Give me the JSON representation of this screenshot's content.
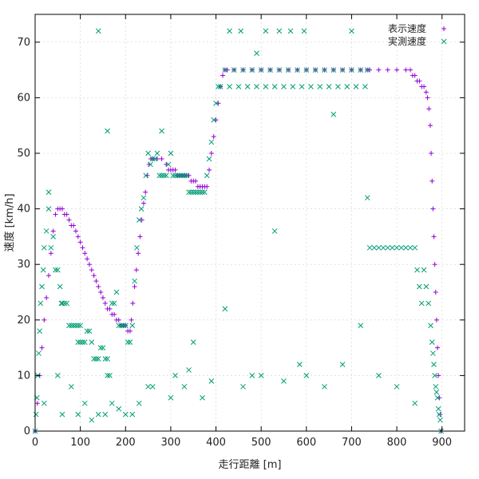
{
  "chart_data": {
    "type": "scatter",
    "title": "",
    "xlabel": "走行距離 [m]",
    "ylabel": "速度 [km/h]",
    "xlim": [
      0,
      950
    ],
    "ylim": [
      0,
      75
    ],
    "xticks": [
      0,
      100,
      200,
      300,
      400,
      500,
      600,
      700,
      800,
      900
    ],
    "yticks": [
      0,
      10,
      20,
      30,
      40,
      50,
      60,
      70
    ],
    "grid": true,
    "legend_position": "top-right",
    "series": [
      {
        "name": "表示速度",
        "marker": "plus",
        "color": "#9400d3",
        "points": [
          [
            0,
            0
          ],
          [
            5,
            5
          ],
          [
            10,
            10
          ],
          [
            15,
            15
          ],
          [
            20,
            20
          ],
          [
            25,
            24
          ],
          [
            30,
            28
          ],
          [
            35,
            32
          ],
          [
            40,
            36
          ],
          [
            45,
            39
          ],
          [
            50,
            40
          ],
          [
            55,
            40
          ],
          [
            60,
            40
          ],
          [
            65,
            39
          ],
          [
            70,
            39
          ],
          [
            75,
            38
          ],
          [
            80,
            37
          ],
          [
            85,
            37
          ],
          [
            90,
            36
          ],
          [
            95,
            35
          ],
          [
            100,
            34
          ],
          [
            105,
            33
          ],
          [
            110,
            32
          ],
          [
            115,
            31
          ],
          [
            120,
            30
          ],
          [
            125,
            29
          ],
          [
            130,
            28
          ],
          [
            135,
            27
          ],
          [
            140,
            26
          ],
          [
            145,
            25
          ],
          [
            150,
            24
          ],
          [
            155,
            23
          ],
          [
            160,
            22
          ],
          [
            165,
            22
          ],
          [
            170,
            21
          ],
          [
            175,
            21
          ],
          [
            180,
            20
          ],
          [
            185,
            20
          ],
          [
            190,
            19
          ],
          [
            195,
            19
          ],
          [
            200,
            19
          ],
          [
            205,
            18
          ],
          [
            210,
            18
          ],
          [
            213,
            20
          ],
          [
            216,
            23
          ],
          [
            220,
            26
          ],
          [
            224,
            29
          ],
          [
            228,
            32
          ],
          [
            232,
            35
          ],
          [
            236,
            38
          ],
          [
            240,
            41
          ],
          [
            244,
            43
          ],
          [
            248,
            46
          ],
          [
            252,
            48
          ],
          [
            256,
            49
          ],
          [
            260,
            49
          ],
          [
            270,
            49
          ],
          [
            280,
            49
          ],
          [
            290,
            48
          ],
          [
            295,
            47
          ],
          [
            300,
            47
          ],
          [
            305,
            47
          ],
          [
            310,
            47
          ],
          [
            315,
            46
          ],
          [
            320,
            46
          ],
          [
            325,
            46
          ],
          [
            330,
            46
          ],
          [
            335,
            46
          ],
          [
            340,
            46
          ],
          [
            345,
            45
          ],
          [
            350,
            45
          ],
          [
            355,
            45
          ],
          [
            360,
            44
          ],
          [
            365,
            44
          ],
          [
            370,
            44
          ],
          [
            375,
            44
          ],
          [
            380,
            44
          ],
          [
            385,
            47
          ],
          [
            390,
            50
          ],
          [
            395,
            53
          ],
          [
            400,
            56
          ],
          [
            405,
            59
          ],
          [
            410,
            62
          ],
          [
            415,
            64
          ],
          [
            420,
            65
          ],
          [
            425,
            65
          ],
          [
            440,
            65
          ],
          [
            460,
            65
          ],
          [
            480,
            65
          ],
          [
            500,
            65
          ],
          [
            520,
            65
          ],
          [
            540,
            65
          ],
          [
            560,
            65
          ],
          [
            580,
            65
          ],
          [
            600,
            65
          ],
          [
            620,
            65
          ],
          [
            640,
            65
          ],
          [
            660,
            65
          ],
          [
            680,
            65
          ],
          [
            700,
            65
          ],
          [
            720,
            65
          ],
          [
            735,
            65
          ],
          [
            740,
            65
          ],
          [
            760,
            65
          ],
          [
            780,
            65
          ],
          [
            800,
            65
          ],
          [
            820,
            65
          ],
          [
            830,
            65
          ],
          [
            835,
            64
          ],
          [
            840,
            64
          ],
          [
            845,
            63
          ],
          [
            850,
            63
          ],
          [
            855,
            62
          ],
          [
            860,
            62
          ],
          [
            865,
            61
          ],
          [
            868,
            60
          ],
          [
            871,
            58
          ],
          [
            874,
            55
          ],
          [
            876,
            50
          ],
          [
            878,
            45
          ],
          [
            880,
            40
          ],
          [
            882,
            35
          ],
          [
            884,
            30
          ],
          [
            886,
            25
          ],
          [
            888,
            20
          ],
          [
            890,
            15
          ],
          [
            892,
            10
          ],
          [
            894,
            6
          ],
          [
            896,
            3
          ],
          [
            898,
            0
          ]
        ]
      },
      {
        "name": "実測速度",
        "marker": "x",
        "color": "#009e73",
        "points": [
          [
            0,
            0
          ],
          [
            2,
            3
          ],
          [
            4,
            6
          ],
          [
            6,
            10
          ],
          [
            8,
            14
          ],
          [
            10,
            18
          ],
          [
            12,
            23
          ],
          [
            15,
            26
          ],
          [
            18,
            29
          ],
          [
            20,
            33
          ],
          [
            25,
            36
          ],
          [
            30,
            40
          ],
          [
            30,
            43
          ],
          [
            35,
            33
          ],
          [
            40,
            35
          ],
          [
            45,
            29
          ],
          [
            50,
            29
          ],
          [
            55,
            26
          ],
          [
            58,
            23
          ],
          [
            60,
            23
          ],
          [
            65,
            23
          ],
          [
            70,
            23
          ],
          [
            75,
            19
          ],
          [
            80,
            19
          ],
          [
            85,
            19
          ],
          [
            90,
            19
          ],
          [
            95,
            19
          ],
          [
            100,
            19
          ],
          [
            95,
            16
          ],
          [
            100,
            16
          ],
          [
            105,
            16
          ],
          [
            110,
            16
          ],
          [
            115,
            18
          ],
          [
            120,
            18
          ],
          [
            125,
            16
          ],
          [
            130,
            13
          ],
          [
            135,
            13
          ],
          [
            140,
            13
          ],
          [
            145,
            15
          ],
          [
            150,
            15
          ],
          [
            155,
            13
          ],
          [
            160,
            13
          ],
          [
            160,
            10
          ],
          [
            165,
            10
          ],
          [
            170,
            23
          ],
          [
            175,
            23
          ],
          [
            180,
            25
          ],
          [
            185,
            19
          ],
          [
            190,
            19
          ],
          [
            195,
            19
          ],
          [
            200,
            19
          ],
          [
            205,
            16
          ],
          [
            210,
            16
          ],
          [
            215,
            19
          ],
          [
            220,
            27
          ],
          [
            225,
            33
          ],
          [
            230,
            38
          ],
          [
            235,
            40
          ],
          [
            240,
            42
          ],
          [
            245,
            46
          ],
          [
            250,
            50
          ],
          [
            255,
            48
          ],
          [
            260,
            49
          ],
          [
            265,
            49
          ],
          [
            270,
            50
          ],
          [
            275,
            46
          ],
          [
            280,
            46
          ],
          [
            285,
            46
          ],
          [
            290,
            46
          ],
          [
            295,
            48
          ],
          [
            300,
            50
          ],
          [
            305,
            46
          ],
          [
            310,
            46
          ],
          [
            315,
            46
          ],
          [
            320,
            46
          ],
          [
            325,
            46
          ],
          [
            330,
            46
          ],
          [
            335,
            46
          ],
          [
            340,
            43
          ],
          [
            345,
            43
          ],
          [
            350,
            43
          ],
          [
            355,
            43
          ],
          [
            360,
            43
          ],
          [
            365,
            43
          ],
          [
            370,
            43
          ],
          [
            375,
            43
          ],
          [
            380,
            46
          ],
          [
            385,
            49
          ],
          [
            390,
            52
          ],
          [
            395,
            56
          ],
          [
            400,
            59
          ],
          [
            405,
            62
          ],
          [
            410,
            62
          ],
          [
            420,
            65
          ],
          [
            430,
            62
          ],
          [
            440,
            65
          ],
          [
            450,
            62
          ],
          [
            460,
            65
          ],
          [
            470,
            62
          ],
          [
            480,
            65
          ],
          [
            490,
            62
          ],
          [
            500,
            65
          ],
          [
            510,
            62
          ],
          [
            520,
            65
          ],
          [
            530,
            62
          ],
          [
            540,
            65
          ],
          [
            550,
            62
          ],
          [
            560,
            65
          ],
          [
            570,
            62
          ],
          [
            580,
            65
          ],
          [
            590,
            62
          ],
          [
            600,
            65
          ],
          [
            610,
            62
          ],
          [
            620,
            65
          ],
          [
            630,
            62
          ],
          [
            640,
            65
          ],
          [
            650,
            62
          ],
          [
            660,
            65
          ],
          [
            670,
            62
          ],
          [
            680,
            65
          ],
          [
            690,
            62
          ],
          [
            700,
            65
          ],
          [
            710,
            62
          ],
          [
            720,
            65
          ],
          [
            730,
            62
          ],
          [
            735,
            65
          ],
          [
            740,
            33
          ],
          [
            750,
            33
          ],
          [
            760,
            33
          ],
          [
            770,
            33
          ],
          [
            780,
            33
          ],
          [
            790,
            33
          ],
          [
            800,
            33
          ],
          [
            810,
            33
          ],
          [
            820,
            33
          ],
          [
            830,
            33
          ],
          [
            840,
            33
          ],
          [
            845,
            29
          ],
          [
            850,
            26
          ],
          [
            855,
            23
          ],
          [
            860,
            29
          ],
          [
            865,
            26
          ],
          [
            870,
            23
          ],
          [
            875,
            19
          ],
          [
            878,
            16
          ],
          [
            880,
            14
          ],
          [
            882,
            12
          ],
          [
            884,
            10
          ],
          [
            886,
            8
          ],
          [
            888,
            7
          ],
          [
            890,
            6
          ],
          [
            892,
            4
          ],
          [
            894,
            3
          ],
          [
            896,
            2
          ],
          [
            898,
            0
          ],
          [
            140,
            72
          ],
          [
            160,
            54
          ],
          [
            280,
            54
          ],
          [
            430,
            72
          ],
          [
            455,
            72
          ],
          [
            490,
            68
          ],
          [
            510,
            72
          ],
          [
            540,
            72
          ],
          [
            565,
            72
          ],
          [
            595,
            72
          ],
          [
            660,
            57
          ],
          [
            700,
            72
          ],
          [
            735,
            42
          ],
          [
            530,
            36
          ],
          [
            50,
            10
          ],
          [
            80,
            8
          ],
          [
            110,
            5
          ],
          [
            140,
            3
          ],
          [
            170,
            5
          ],
          [
            200,
            3
          ],
          [
            230,
            5
          ],
          [
            260,
            8
          ],
          [
            300,
            6
          ],
          [
            330,
            8
          ],
          [
            350,
            16
          ],
          [
            370,
            6
          ],
          [
            390,
            9
          ],
          [
            420,
            22
          ],
          [
            460,
            8
          ],
          [
            500,
            10
          ],
          [
            550,
            9
          ],
          [
            600,
            10
          ],
          [
            640,
            8
          ],
          [
            680,
            12
          ],
          [
            720,
            19
          ],
          [
            760,
            10
          ],
          [
            800,
            8
          ],
          [
            840,
            5
          ],
          [
            20,
            5
          ],
          [
            60,
            3
          ],
          [
            95,
            3
          ],
          [
            125,
            2
          ],
          [
            155,
            3
          ],
          [
            185,
            4
          ],
          [
            215,
            3
          ],
          [
            250,
            8
          ],
          [
            310,
            10
          ],
          [
            340,
            11
          ],
          [
            480,
            10
          ],
          [
            585,
            12
          ]
        ]
      }
    ]
  }
}
